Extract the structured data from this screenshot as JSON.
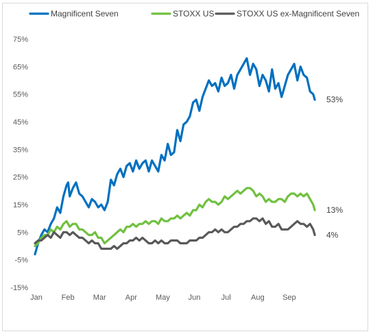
{
  "chart_data": {
    "type": "line",
    "title": "",
    "xlabel": "",
    "ylabel": "",
    "ylim": [
      -15,
      75
    ],
    "yticks": [
      -15,
      -5,
      5,
      15,
      25,
      35,
      45,
      55,
      65,
      75
    ],
    "ytick_labels": [
      "-15%",
      "-5%",
      "5%",
      "15%",
      "25%",
      "35%",
      "45%",
      "55%",
      "65%",
      "75%"
    ],
    "xlim": [
      0,
      9.0
    ],
    "x_tick_positions": [
      0,
      1,
      2,
      3,
      4,
      5,
      6,
      7,
      8
    ],
    "x_tick_labels": [
      "Jan",
      "Feb",
      "Mar",
      "Apr",
      "May",
      "Jun",
      "Jul",
      "Aug",
      "Sep"
    ],
    "grid": false,
    "legend_position": "top",
    "series": [
      {
        "name": "Magnificent Seven",
        "color": "#0070C0",
        "end_label": "53%",
        "x": [
          0,
          0.05,
          0.1,
          0.2,
          0.3,
          0.4,
          0.5,
          0.6,
          0.7,
          0.8,
          0.9,
          1.0,
          1.05,
          1.1,
          1.2,
          1.3,
          1.4,
          1.5,
          1.6,
          1.7,
          1.8,
          1.9,
          2.0,
          2.1,
          2.2,
          2.3,
          2.4,
          2.5,
          2.6,
          2.7,
          2.8,
          2.9,
          3.0,
          3.1,
          3.2,
          3.3,
          3.4,
          3.5,
          3.6,
          3.7,
          3.8,
          3.9,
          4.0,
          4.1,
          4.2,
          4.3,
          4.4,
          4.5,
          4.6,
          4.7,
          4.8,
          4.9,
          5.0,
          5.1,
          5.2,
          5.3,
          5.4,
          5.5,
          5.6,
          5.7,
          5.8,
          5.9,
          6.0,
          6.1,
          6.2,
          6.3,
          6.4,
          6.5,
          6.6,
          6.7,
          6.8,
          6.9,
          7.0,
          7.1,
          7.2,
          7.3,
          7.4,
          7.5,
          7.6,
          7.7,
          7.8,
          7.9,
          8.0,
          8.1,
          8.2,
          8.3,
          8.4,
          8.5,
          8.6,
          8.7,
          8.8,
          8.85
        ],
        "y": [
          -3,
          -1,
          1,
          4,
          6,
          5,
          8,
          10,
          14,
          12,
          18,
          22,
          23,
          18,
          21,
          23,
          19,
          18,
          16,
          14,
          17,
          16,
          14,
          15,
          13,
          16,
          24,
          22,
          26,
          28,
          25,
          29,
          30,
          27,
          31,
          28,
          30,
          31,
          27,
          31,
          29,
          27,
          33,
          31,
          37,
          33,
          34,
          42,
          38,
          44,
          45,
          47,
          52,
          53,
          49,
          54,
          57,
          60,
          58,
          59,
          56,
          61,
          58,
          59,
          62,
          57,
          62,
          64,
          66,
          68,
          62,
          66,
          64,
          58,
          62,
          60,
          56,
          64,
          57,
          59,
          54,
          58,
          62,
          64,
          66,
          60,
          65,
          62,
          61,
          56,
          55,
          53
        ]
      },
      {
        "name": "STOXX US",
        "color": "#70C040",
        "end_label": "13%",
        "x": [
          0,
          0.1,
          0.2,
          0.3,
          0.4,
          0.5,
          0.6,
          0.7,
          0.8,
          0.9,
          1.0,
          1.1,
          1.2,
          1.3,
          1.4,
          1.5,
          1.6,
          1.7,
          1.8,
          1.9,
          2.0,
          2.1,
          2.2,
          2.3,
          2.4,
          2.5,
          2.6,
          2.7,
          2.8,
          2.9,
          3.0,
          3.1,
          3.2,
          3.3,
          3.4,
          3.5,
          3.6,
          3.7,
          3.8,
          3.9,
          4.0,
          4.1,
          4.2,
          4.3,
          4.4,
          4.5,
          4.6,
          4.7,
          4.8,
          4.9,
          5.0,
          5.1,
          5.2,
          5.3,
          5.4,
          5.5,
          5.6,
          5.7,
          5.8,
          5.9,
          6.0,
          6.1,
          6.2,
          6.3,
          6.4,
          6.5,
          6.6,
          6.7,
          6.8,
          6.9,
          7.0,
          7.1,
          7.2,
          7.3,
          7.4,
          7.5,
          7.6,
          7.7,
          7.8,
          7.9,
          8.0,
          8.1,
          8.2,
          8.3,
          8.4,
          8.5,
          8.6,
          8.7,
          8.8,
          8.85
        ],
        "y": [
          0,
          1,
          3,
          4,
          4,
          6,
          5,
          7,
          6,
          8,
          9,
          7,
          8,
          8,
          6,
          6,
          5,
          4,
          4,
          5,
          3,
          3,
          1,
          2,
          3,
          4,
          5,
          6,
          5,
          7,
          7,
          8,
          7,
          8,
          8,
          9,
          8,
          9,
          9,
          8,
          10,
          9,
          9,
          10,
          10,
          11,
          10,
          11,
          12,
          11,
          13,
          13,
          15,
          14,
          16,
          17,
          16,
          16,
          15,
          16,
          18,
          17,
          18,
          19,
          20,
          19,
          20,
          21,
          21,
          20,
          18,
          19,
          18,
          16,
          17,
          16,
          16,
          17,
          17,
          16,
          18,
          19,
          19,
          18,
          19,
          18,
          19,
          17,
          15,
          13
        ]
      },
      {
        "name": "STOXX US ex-Magnificent Seven",
        "color": "#595959",
        "end_label": "4%",
        "x": [
          0,
          0.1,
          0.2,
          0.3,
          0.4,
          0.5,
          0.6,
          0.7,
          0.8,
          0.9,
          1.0,
          1.1,
          1.2,
          1.3,
          1.4,
          1.5,
          1.6,
          1.7,
          1.8,
          1.9,
          2.0,
          2.1,
          2.2,
          2.3,
          2.4,
          2.5,
          2.6,
          2.7,
          2.8,
          2.9,
          3.0,
          3.1,
          3.2,
          3.3,
          3.4,
          3.5,
          3.6,
          3.7,
          3.8,
          3.9,
          4.0,
          4.1,
          4.2,
          4.3,
          4.4,
          4.5,
          4.6,
          4.7,
          4.8,
          4.9,
          5.0,
          5.1,
          5.2,
          5.3,
          5.4,
          5.5,
          5.6,
          5.7,
          5.8,
          5.9,
          6.0,
          6.1,
          6.2,
          6.3,
          6.4,
          6.5,
          6.6,
          6.7,
          6.8,
          6.9,
          7.0,
          7.1,
          7.2,
          7.3,
          7.4,
          7.5,
          7.6,
          7.7,
          7.8,
          7.9,
          8.0,
          8.1,
          8.2,
          8.3,
          8.4,
          8.5,
          8.6,
          8.7,
          8.8,
          8.85
        ],
        "y": [
          1,
          2,
          2,
          3,
          4,
          3,
          5,
          4,
          3,
          5,
          5,
          4,
          5,
          4,
          3,
          3,
          2,
          1,
          2,
          1,
          1,
          -1,
          -1,
          -1,
          -1,
          0,
          -1,
          0,
          1,
          1,
          2,
          2,
          3,
          2,
          3,
          2,
          1,
          1,
          2,
          1,
          2,
          1,
          1,
          2,
          2,
          2,
          1,
          1,
          1,
          2,
          2,
          2,
          3,
          3,
          4,
          5,
          5,
          6,
          5,
          6,
          5,
          5,
          6,
          7,
          7,
          8,
          8,
          9,
          9,
          10,
          10,
          9,
          10,
          8,
          9,
          7,
          7,
          8,
          6,
          6,
          6,
          7,
          8,
          9,
          8,
          8,
          7,
          8,
          6,
          4
        ]
      }
    ]
  }
}
